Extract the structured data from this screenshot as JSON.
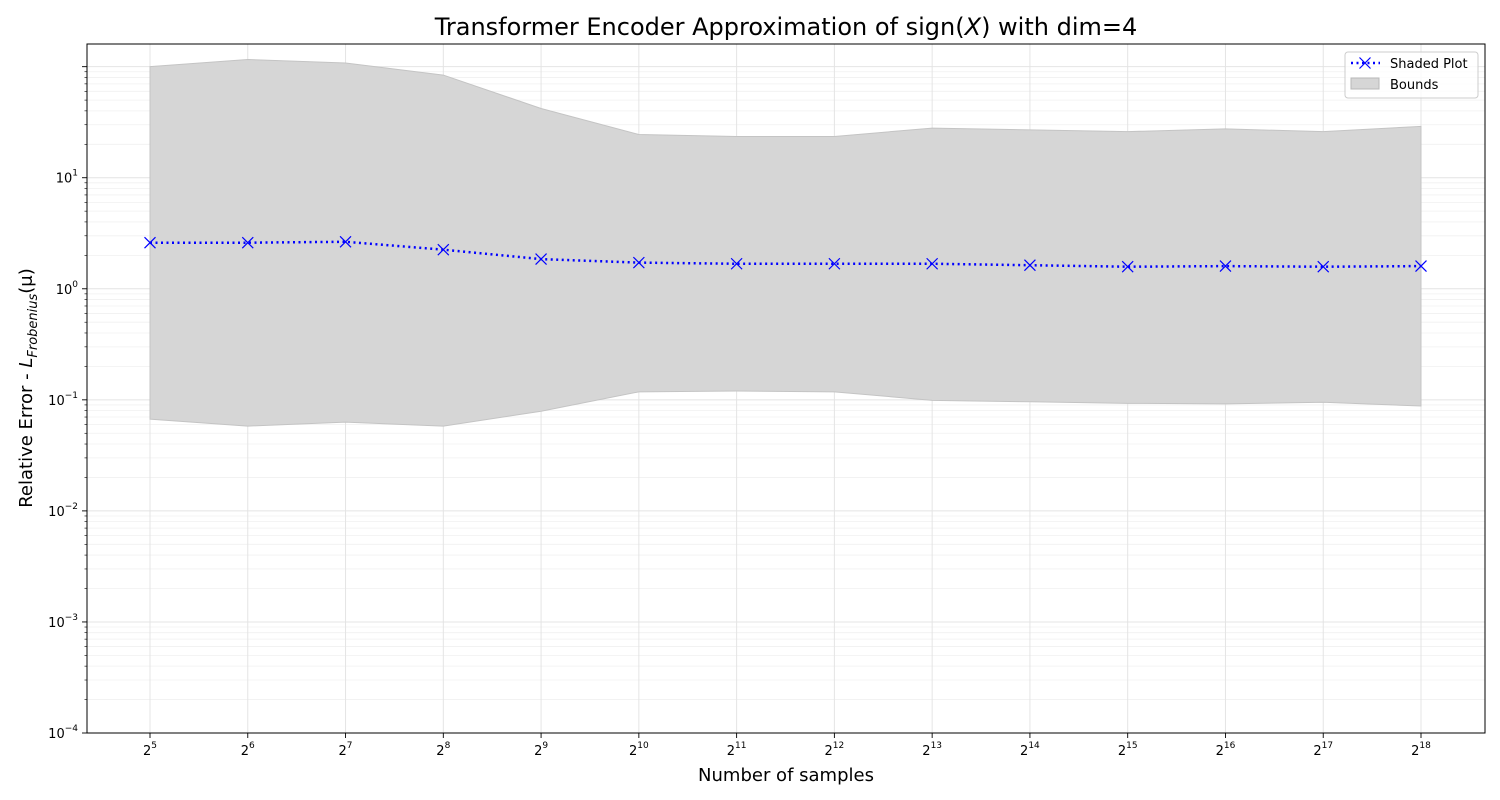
{
  "chart_data": {
    "type": "line",
    "title_text": "Transformer Encoder Approximation of sign(",
    "title_var": "X",
    "title_suffix": ")  with dim=4",
    "xlabel": "Number of samples",
    "ylabel_prefix": "Relative Error - ",
    "ylabel_symbol": "L",
    "ylabel_subscript": "Frobenius",
    "ylabel_arg": "(μ)",
    "x_log2": [
      5,
      6,
      7,
      8,
      9,
      10,
      11,
      12,
      13,
      14,
      15,
      16,
      17,
      18
    ],
    "x_tick_base": "2",
    "y_scale": "log",
    "ylim": [
      0.0001,
      160
    ],
    "y_ticks": [
      -4,
      -3,
      -2,
      -1,
      0,
      1
    ],
    "y_tick_base": "10",
    "grid": true,
    "legend_position": "top-right",
    "series": [
      {
        "name": "Shaded Plot",
        "color": "#0000ff",
        "marker": "x",
        "linestyle": "dotted",
        "values": [
          2.6,
          2.6,
          2.65,
          2.25,
          1.85,
          1.72,
          1.68,
          1.68,
          1.68,
          1.63,
          1.58,
          1.6,
          1.58,
          1.6
        ]
      }
    ],
    "band": {
      "name": "Bounds",
      "color": "#d6d6d6",
      "upper": [
        100,
        116,
        108,
        84,
        42,
        24.5,
        23.5,
        23.5,
        28,
        27,
        26,
        27.5,
        26,
        29
      ],
      "lower": [
        0.067,
        0.058,
        0.063,
        0.058,
        0.079,
        0.118,
        0.12,
        0.118,
        0.099,
        0.096,
        0.093,
        0.092,
        0.095,
        0.088
      ]
    }
  }
}
